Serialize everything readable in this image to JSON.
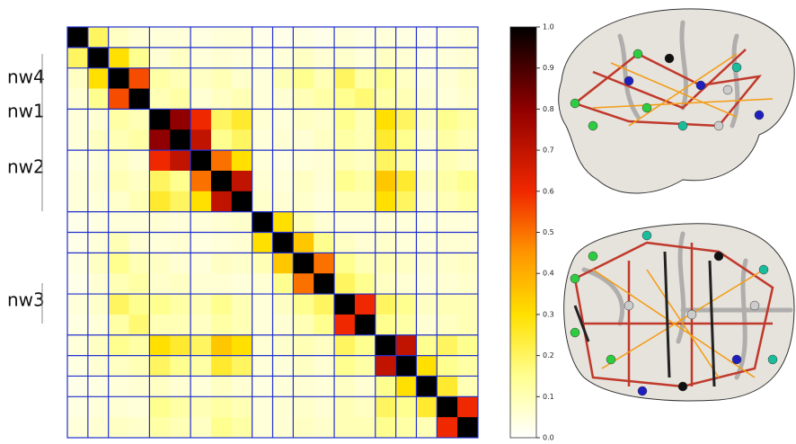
{
  "chart_data": {
    "type": "heatmap",
    "group_labels": [
      "nw4",
      "nw1",
      "nw2",
      "nw3"
    ],
    "zlim": [
      0,
      1
    ],
    "zticks": [
      {
        "value": 0,
        "label": "0.0"
      },
      0.1,
      0.2,
      0.3,
      0.4,
      0.5,
      0.6,
      0.7,
      0.8,
      0.9,
      {
        "value": 1,
        "label": "1.0"
      }
    ],
    "z": [
      [
        1,
        0.2,
        0.08,
        0.06,
        0.05,
        0.05,
        0.04,
        0.05,
        0.05,
        0.03,
        0.03,
        0.04,
        0.03,
        0.05,
        0.04,
        0.05,
        0.04,
        0.03,
        0.04,
        0.05
      ],
      [
        0.2,
        1,
        0.3,
        0.15,
        0.06,
        0.08,
        0.05,
        0.06,
        0.05,
        0.04,
        0.05,
        0.08,
        0.06,
        0.07,
        0.05,
        0.08,
        0.06,
        0.04,
        0.05,
        0.06
      ],
      [
        0.08,
        0.3,
        1,
        0.55,
        0.12,
        0.1,
        0.08,
        0.1,
        0.07,
        0.05,
        0.1,
        0.15,
        0.1,
        0.2,
        0.12,
        0.15,
        0.08,
        0.05,
        0.06,
        0.08
      ],
      [
        0.06,
        0.15,
        0.55,
        1,
        0.1,
        0.12,
        0.06,
        0.08,
        0.1,
        0.05,
        0.06,
        0.1,
        0.12,
        0.15,
        0.18,
        0.12,
        0.1,
        0.06,
        0.05,
        0.07
      ],
      [
        0.05,
        0.06,
        0.12,
        0.1,
        1,
        0.8,
        0.6,
        0.2,
        0.25,
        0.06,
        0.05,
        0.08,
        0.07,
        0.15,
        0.1,
        0.3,
        0.2,
        0.08,
        0.15,
        0.12
      ],
      [
        0.05,
        0.08,
        0.1,
        0.12,
        0.8,
        1,
        0.7,
        0.15,
        0.2,
        0.05,
        0.06,
        0.06,
        0.08,
        0.12,
        0.1,
        0.25,
        0.15,
        0.06,
        0.12,
        0.1
      ],
      [
        0.04,
        0.05,
        0.08,
        0.06,
        0.6,
        0.7,
        1,
        0.5,
        0.3,
        0.05,
        0.04,
        0.05,
        0.06,
        0.1,
        0.08,
        0.2,
        0.12,
        0.05,
        0.1,
        0.08
      ],
      [
        0.05,
        0.06,
        0.1,
        0.08,
        0.2,
        0.15,
        0.5,
        1,
        0.7,
        0.06,
        0.05,
        0.08,
        0.06,
        0.15,
        0.12,
        0.35,
        0.25,
        0.08,
        0.12,
        0.15
      ],
      [
        0.05,
        0.05,
        0.07,
        0.1,
        0.25,
        0.2,
        0.3,
        0.7,
        1,
        0.07,
        0.06,
        0.07,
        0.05,
        0.1,
        0.1,
        0.3,
        0.2,
        0.06,
        0.1,
        0.12
      ],
      [
        0.03,
        0.04,
        0.05,
        0.05,
        0.06,
        0.05,
        0.05,
        0.06,
        0.07,
        1,
        0.3,
        0.1,
        0.06,
        0.05,
        0.05,
        0.06,
        0.05,
        0.04,
        0.05,
        0.05
      ],
      [
        0.03,
        0.05,
        0.1,
        0.06,
        0.05,
        0.06,
        0.04,
        0.05,
        0.06,
        0.3,
        1,
        0.35,
        0.15,
        0.08,
        0.06,
        0.07,
        0.05,
        0.05,
        0.06,
        0.06
      ],
      [
        0.04,
        0.08,
        0.15,
        0.1,
        0.08,
        0.06,
        0.05,
        0.08,
        0.07,
        0.1,
        0.35,
        1,
        0.5,
        0.15,
        0.1,
        0.1,
        0.08,
        0.06,
        0.07,
        0.08
      ],
      [
        0.03,
        0.06,
        0.1,
        0.12,
        0.07,
        0.08,
        0.06,
        0.06,
        0.05,
        0.06,
        0.15,
        0.5,
        1,
        0.2,
        0.15,
        0.08,
        0.06,
        0.05,
        0.06,
        0.07
      ],
      [
        0.05,
        0.07,
        0.2,
        0.15,
        0.15,
        0.12,
        0.1,
        0.15,
        0.1,
        0.05,
        0.08,
        0.15,
        0.2,
        1,
        0.6,
        0.2,
        0.15,
        0.08,
        0.1,
        0.1
      ],
      [
        0.04,
        0.05,
        0.12,
        0.18,
        0.1,
        0.1,
        0.08,
        0.12,
        0.1,
        0.05,
        0.06,
        0.1,
        0.15,
        0.6,
        1,
        0.15,
        0.12,
        0.06,
        0.08,
        0.1
      ],
      [
        0.05,
        0.08,
        0.15,
        0.12,
        0.3,
        0.25,
        0.2,
        0.35,
        0.3,
        0.06,
        0.07,
        0.1,
        0.08,
        0.2,
        0.15,
        1,
        0.7,
        0.15,
        0.2,
        0.15
      ],
      [
        0.04,
        0.06,
        0.08,
        0.1,
        0.2,
        0.15,
        0.12,
        0.25,
        0.2,
        0.05,
        0.05,
        0.08,
        0.06,
        0.15,
        0.12,
        0.7,
        1,
        0.3,
        0.15,
        0.12
      ],
      [
        0.03,
        0.04,
        0.05,
        0.06,
        0.08,
        0.06,
        0.05,
        0.08,
        0.06,
        0.04,
        0.05,
        0.06,
        0.05,
        0.08,
        0.06,
        0.15,
        0.3,
        1,
        0.25,
        0.1
      ],
      [
        0.04,
        0.05,
        0.06,
        0.05,
        0.15,
        0.12,
        0.1,
        0.12,
        0.1,
        0.05,
        0.06,
        0.07,
        0.06,
        0.1,
        0.08,
        0.2,
        0.15,
        0.25,
        1,
        0.6
      ],
      [
        0.05,
        0.06,
        0.08,
        0.07,
        0.12,
        0.1,
        0.08,
        0.15,
        0.12,
        0.05,
        0.06,
        0.08,
        0.07,
        0.1,
        0.1,
        0.15,
        0.12,
        0.1,
        0.6,
        1
      ]
    ]
  }
}
